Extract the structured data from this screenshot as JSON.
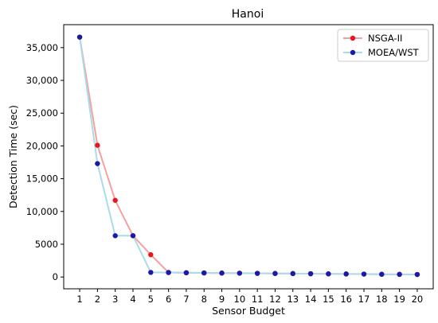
{
  "chart_data": {
    "type": "line",
    "title": "Hanoi",
    "xlabel": "Sensor Budget",
    "ylabel": "Detection Time (sec)",
    "x": [
      1,
      2,
      3,
      4,
      5,
      6,
      7,
      8,
      9,
      10,
      11,
      12,
      13,
      14,
      15,
      16,
      17,
      18,
      19,
      20
    ],
    "x_tick_labels": [
      "1",
      "2",
      "3",
      "4",
      "5",
      "6",
      "7",
      "8",
      "9",
      "10",
      "11",
      "12",
      "13",
      "14",
      "15",
      "16",
      "17",
      "18",
      "19",
      "20"
    ],
    "y_ticks": [
      0,
      5000,
      10000,
      15000,
      20000,
      25000,
      30000,
      35000
    ],
    "y_tick_labels": [
      "0",
      "5000",
      "10,000",
      "15,000",
      "20,000",
      "25,000",
      "30,000",
      "35,000"
    ],
    "ylim": [
      -1800,
      38500
    ],
    "xlim": [
      0.1,
      20.9
    ],
    "grid": false,
    "legend_position": "top-right",
    "series": [
      {
        "name": "NSGA-II",
        "line_color": "#f4a0a0",
        "marker_color": "#e8161b",
        "values": [
          36600,
          20100,
          11700,
          6300,
          3400,
          700,
          650,
          620,
          600,
          580,
          560,
          540,
          520,
          500,
          480,
          460,
          440,
          420,
          400,
          380
        ]
      },
      {
        "name": "MOEA/WST",
        "line_color": "#a8dcec",
        "marker_color": "#1a1aa6",
        "values": [
          36600,
          17300,
          6300,
          6300,
          700,
          680,
          650,
          620,
          600,
          580,
          560,
          540,
          520,
          500,
          480,
          460,
          440,
          420,
          400,
          380
        ]
      }
    ]
  }
}
